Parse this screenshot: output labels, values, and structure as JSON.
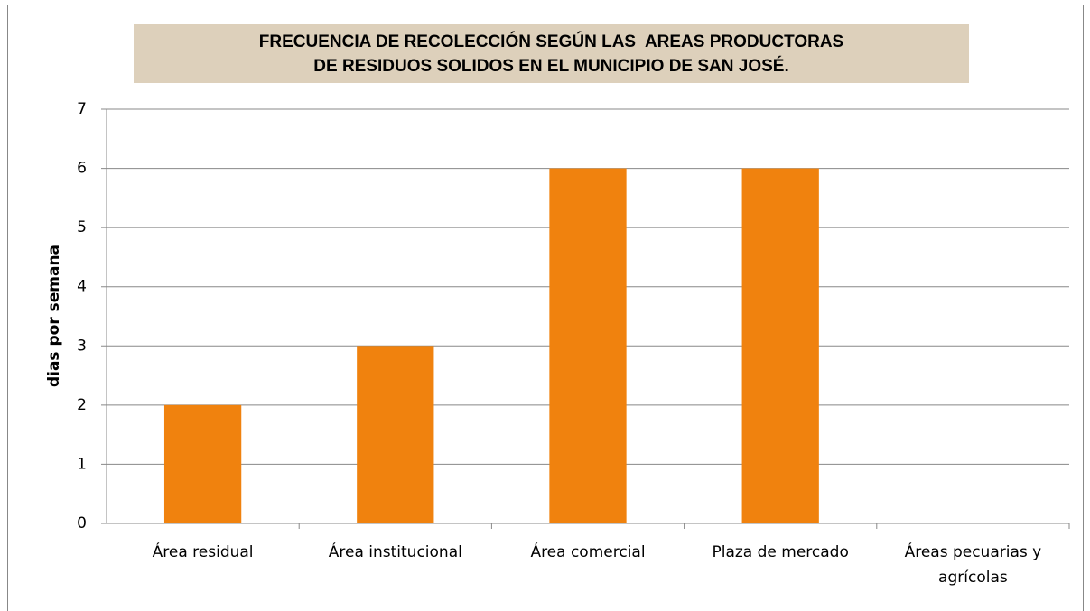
{
  "chart_data": {
    "type": "bar",
    "title": [
      "FRECUENCIA DE RECOLECCIÓN SEGÚN LAS  AREAS PRODUCTORAS",
      "DE RESIDUOS SOLIDOS EN EL MUNICIPIO DE SAN JOSÉ."
    ],
    "y_label": "dias por semana",
    "categories": [
      "Área residual",
      "Área institucional",
      "Área comercial",
      "Plaza de mercado",
      "Áreas pecuarias y agrícolas"
    ],
    "values": [
      2,
      3,
      6,
      6,
      0
    ],
    "color": "#f0820e",
    "ylim": [
      0,
      7
    ],
    "yticks": [
      0,
      1,
      2,
      3,
      4,
      5,
      6,
      7
    ],
    "grid": true
  }
}
